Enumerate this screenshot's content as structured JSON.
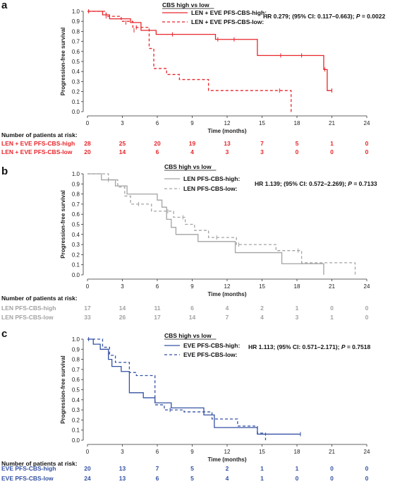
{
  "chart_data": [
    {
      "panel": "a",
      "type": "line",
      "subtype": "kaplan-meier",
      "xlabel": "Time (months)",
      "ylabel": "Progression-free survival",
      "xlim": [
        0,
        24
      ],
      "ylim": [
        0,
        1.0
      ],
      "xticks": [
        0,
        3,
        6,
        9,
        12,
        15,
        18,
        21,
        24
      ],
      "yticks": [
        0.0,
        0.1,
        0.2,
        0.3,
        0.4,
        0.5,
        0.6,
        0.7,
        0.8,
        0.9,
        1.0
      ],
      "legend_title": "CBS high vs low",
      "stat_text": "HR 0.279; (95% CI: 0.117–0.663); ",
      "p_label": "P",
      "p_value": " = 0.0022",
      "risk_title": "Number of patients at risk:",
      "risk_times": [
        0,
        3,
        6,
        9,
        12,
        15,
        18,
        21,
        24
      ],
      "series": [
        {
          "name": "LEN + EVE PFS-CBS-high:",
          "risk_label": "LEN + EVE PFS-CBS-high",
          "color": "#e8262b",
          "dash": "solid",
          "steps": [
            [
              0,
              1.0
            ],
            [
              1.3,
              0.965
            ],
            [
              1.9,
              0.925
            ],
            [
              3.7,
              0.888
            ],
            [
              4.6,
              0.81
            ],
            [
              5.9,
              0.77
            ],
            [
              11.0,
              0.72
            ],
            [
              14.6,
              0.56
            ],
            [
              20.3,
              0.42
            ],
            [
              20.6,
              0.21
            ]
          ],
          "end": 21.0,
          "censors": [
            [
              0.1,
              1.0
            ],
            [
              3.3,
              0.888
            ],
            [
              4.0,
              0.81
            ],
            [
              7.3,
              0.77
            ],
            [
              11.2,
              0.72
            ],
            [
              12.6,
              0.72
            ],
            [
              16.6,
              0.56
            ],
            [
              18.4,
              0.56
            ],
            [
              20.4,
              0.42
            ],
            [
              21.0,
              0.21
            ]
          ],
          "risk": [
            28,
            25,
            20,
            19,
            13,
            7,
            5,
            1,
            0
          ]
        },
        {
          "name": "LEN + EVE PFS-CBS-low:",
          "risk_label": "LEN + EVE PFS-CBS-low",
          "color": "#e8262b",
          "dash": "dashed",
          "steps": [
            [
              0,
              1.0
            ],
            [
              1.6,
              0.95
            ],
            [
              2.9,
              0.9
            ],
            [
              3.9,
              0.84
            ],
            [
              5.3,
              0.63
            ],
            [
              5.7,
              0.43
            ],
            [
              6.8,
              0.37
            ],
            [
              7.9,
              0.32
            ],
            [
              10.4,
              0.21
            ],
            [
              17.5,
              0.0
            ]
          ],
          "end": 17.6,
          "censors": [
            [
              1.6,
              0.95
            ],
            [
              4.2,
              0.84
            ],
            [
              16.5,
              0.21
            ]
          ],
          "risk": [
            20,
            14,
            6,
            4,
            3,
            3,
            0,
            0,
            0
          ]
        }
      ]
    },
    {
      "panel": "b",
      "type": "line",
      "subtype": "kaplan-meier",
      "xlabel": "Time (months)",
      "ylabel": "Progression-free survival",
      "xlim": [
        0,
        24
      ],
      "ylim": [
        0,
        1.0
      ],
      "xticks": [
        0,
        3,
        6,
        9,
        12,
        15,
        18,
        21,
        24
      ],
      "yticks": [
        0.0,
        0.1,
        0.2,
        0.3,
        0.4,
        0.5,
        0.6,
        0.7,
        0.8,
        0.9,
        1.0
      ],
      "legend_title": "CBS high vs low",
      "stat_text": "HR 1.139; (95% CI: 0.572–2.269); ",
      "p_label": "P",
      "p_value": " = 0.7133",
      "risk_title": "Number of patients at risk:",
      "risk_times": [
        0,
        3,
        6,
        9,
        12,
        15,
        18,
        21,
        24
      ],
      "series": [
        {
          "name": "LEN PFS-CBS-high:",
          "risk_label": "LEN PFS-CBS-high",
          "color": "#a3a3a3",
          "dash": "solid",
          "steps": [
            [
              0,
              1.0
            ],
            [
              1.2,
              0.94
            ],
            [
              2.4,
              0.88
            ],
            [
              3.4,
              0.8
            ],
            [
              6.0,
              0.74
            ],
            [
              6.4,
              0.67
            ],
            [
              6.8,
              0.55
            ],
            [
              7.2,
              0.47
            ],
            [
              7.6,
              0.4
            ],
            [
              9.5,
              0.33
            ],
            [
              12.7,
              0.22
            ],
            [
              16.7,
              0.11
            ],
            [
              20.3,
              0.0
            ]
          ],
          "end": 20.3,
          "censors": [],
          "risk": [
            17,
            14,
            11,
            6,
            4,
            2,
            1,
            0,
            0
          ]
        },
        {
          "name": "LEN PFS-CBS-low:",
          "risk_label": "LEN PFS-CBS-low",
          "color": "#a3a3a3",
          "dash": "dashed",
          "steps": [
            [
              0,
              1.0
            ],
            [
              1.8,
              0.94
            ],
            [
              2.6,
              0.87
            ],
            [
              3.2,
              0.78
            ],
            [
              3.7,
              0.7
            ],
            [
              5.5,
              0.63
            ],
            [
              7.4,
              0.57
            ],
            [
              8.4,
              0.5
            ],
            [
              9.2,
              0.44
            ],
            [
              10.4,
              0.37
            ],
            [
              12.8,
              0.3
            ],
            [
              16.2,
              0.24
            ],
            [
              18.4,
              0.12
            ],
            [
              23.0,
              0.0
            ]
          ],
          "end": 23.0,
          "censors": [
            [
              1.8,
              0.94
            ],
            [
              4.4,
              0.7
            ],
            [
              6.9,
              0.63
            ],
            [
              8.2,
              0.57
            ],
            [
              11.1,
              0.37
            ],
            [
              13.0,
              0.3
            ],
            [
              18.1,
              0.24
            ]
          ],
          "risk": [
            33,
            26,
            17,
            14,
            7,
            4,
            3,
            1,
            0
          ]
        }
      ]
    },
    {
      "panel": "c",
      "type": "line",
      "subtype": "kaplan-meier",
      "xlabel": "Time (months)",
      "ylabel": "Progression-free survival",
      "xlim": [
        0,
        24
      ],
      "ylim": [
        0,
        1.0
      ],
      "xticks": [
        0,
        3,
        6,
        9,
        12,
        15,
        18,
        21,
        24
      ],
      "yticks": [
        0.0,
        0.1,
        0.2,
        0.3,
        0.4,
        0.5,
        0.6,
        0.7,
        0.8,
        0.9,
        1.0
      ],
      "legend_title": "CBS high vs low",
      "stat_text": "HR 1.113; (95% CI: 0.571–2.171); ",
      "p_label": "P",
      "p_value": " = 0.7518",
      "risk_title": "Number of patients at risk:",
      "risk_times": [
        0,
        3,
        6,
        9,
        12,
        15,
        18,
        21,
        24
      ],
      "series": [
        {
          "name": "EVE PFS-CBS-high:",
          "risk_label": "EVE PFS-CBS-high",
          "color": "#3452a4",
          "dash": "solid",
          "steps": [
            [
              0,
              1.0
            ],
            [
              0.5,
              0.95
            ],
            [
              1.1,
              0.9
            ],
            [
              1.8,
              0.8
            ],
            [
              2.1,
              0.73
            ],
            [
              2.9,
              0.68
            ],
            [
              3.6,
              0.47
            ],
            [
              4.8,
              0.42
            ],
            [
              5.8,
              0.37
            ],
            [
              7.2,
              0.32
            ],
            [
              10.0,
              0.25
            ],
            [
              10.9,
              0.125
            ],
            [
              14.6,
              0.06
            ]
          ],
          "end": 18.3,
          "censors": [
            [
              18.3,
              0.06
            ]
          ],
          "risk": [
            20,
            13,
            7,
            5,
            2,
            1,
            1,
            0,
            0
          ]
        },
        {
          "name": "EVE PFS-CBS-low:",
          "risk_label": "EVE PFS-CBS-low",
          "color": "#3452a4",
          "dash": "dashed",
          "steps": [
            [
              0,
              1.0
            ],
            [
              1.3,
              0.92
            ],
            [
              1.9,
              0.84
            ],
            [
              2.4,
              0.77
            ],
            [
              3.6,
              0.67
            ],
            [
              4.2,
              0.64
            ],
            [
              5.8,
              0.35
            ],
            [
              6.6,
              0.3
            ],
            [
              8.3,
              0.28
            ],
            [
              10.7,
              0.21
            ],
            [
              12.9,
              0.14
            ],
            [
              14.6,
              0.07
            ],
            [
              15.3,
              0.0
            ]
          ],
          "end": 15.3,
          "censors": [
            [
              0.1,
              1.0
            ],
            [
              1.8,
              0.84
            ],
            [
              7.1,
              0.3
            ]
          ],
          "risk": [
            24,
            13,
            6,
            5,
            4,
            1,
            0,
            0,
            0
          ]
        }
      ]
    }
  ],
  "panel_letters": [
    "a",
    "b",
    "c"
  ]
}
